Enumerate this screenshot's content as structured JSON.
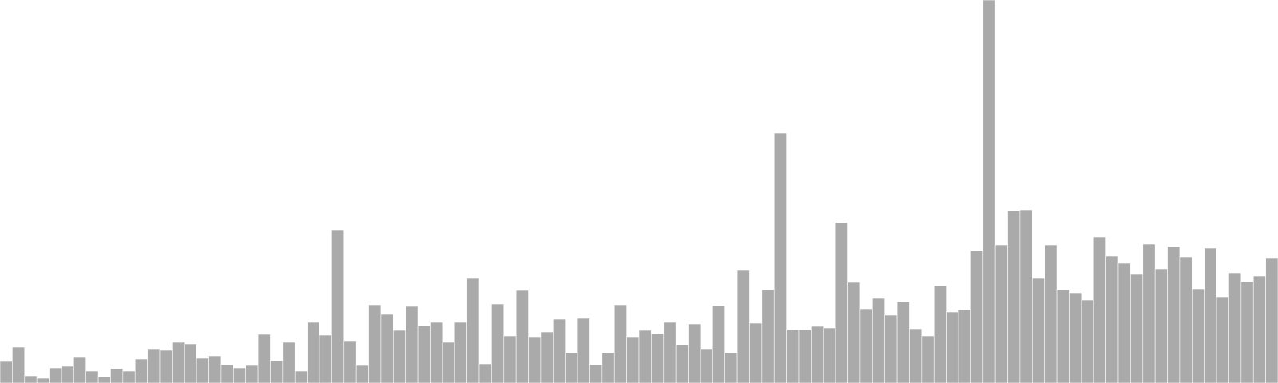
{
  "chart_data": {
    "type": "bar",
    "title": "",
    "xlabel": "",
    "ylabel": "",
    "ylim": [
      0,
      480
    ],
    "grid": false,
    "legend": "none",
    "bar_color": "#aaaaaa",
    "bar_edge_color": "#ffffff",
    "background_color": "#ffffff",
    "values": [
      27,
      45,
      9,
      6,
      19,
      21,
      32,
      15,
      8,
      18,
      15,
      30,
      42,
      41,
      51,
      49,
      31,
      34,
      23,
      19,
      22,
      61,
      28,
      51,
      15,
      76,
      60,
      192,
      53,
      22,
      98,
      86,
      66,
      96,
      72,
      76,
      51,
      76,
      131,
      24,
      99,
      59,
      116,
      58,
      64,
      80,
      38,
      81,
      23,
      38,
      98,
      58,
      66,
      62,
      76,
      48,
      74,
      42,
      97,
      38,
      141,
      75,
      117,
      313,
      67,
      67,
      71,
      69,
      201,
      126,
      93,
      106,
      85,
      102,
      68,
      59,
      122,
      89,
      92,
      166,
      480,
      173,
      216,
      217,
      131,
      173,
      117,
      113,
      104,
      183,
      159,
      150,
      136,
      174,
      143,
      171,
      158,
      118,
      169,
      108,
      138,
      127,
      134,
      157
    ]
  }
}
